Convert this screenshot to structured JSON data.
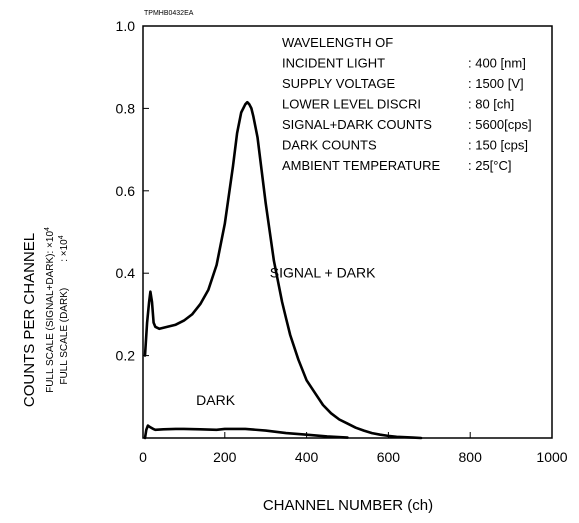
{
  "chart_data": {
    "type": "line",
    "code": "TPMHB0432EA",
    "xlabel": "CHANNEL NUMBER (ch)",
    "ylabel": "COUNTS PER CHANNEL",
    "ylabel_sub1": "FULL SCALE (SIGNAL+DARK): ×10",
    "ylabel_sub1_exp": "4",
    "ylabel_sub2": "FULL SCALE (DARK)",
    "ylabel_sub2_val": ": ×10",
    "ylabel_sub2_exp": "4",
    "xlim": [
      0,
      1000
    ],
    "ylim": [
      0,
      1.0
    ],
    "xticks": [
      0,
      200,
      400,
      600,
      800,
      1000
    ],
    "yticks": [
      0.2,
      0.4,
      0.6,
      0.8,
      1.0
    ],
    "ytick_labels": [
      "0.2",
      "0.4",
      "0.6",
      "0.8",
      "1.0"
    ],
    "legend_box": [
      {
        "label": "WAVELENGTH OF",
        "value": ""
      },
      {
        "label": "INCIDENT LIGHT",
        "value": ": 400 [nm]"
      },
      {
        "label": "SUPPLY VOLTAGE",
        "value": ": 1500 [V]"
      },
      {
        "label": "LOWER LEVEL DISCRI",
        "value": ": 80 [ch]"
      },
      {
        "label": "SIGNAL+DARK COUNTS",
        "value": ": 5600[cps]"
      },
      {
        "label": "DARK COUNTS",
        "value": ": 150 [cps]"
      },
      {
        "label": "AMBIENT TEMPERATURE",
        "value": ": 25[°C]"
      }
    ],
    "series": [
      {
        "name": "SIGNAL + DARK",
        "x": [
          5,
          10,
          15,
          18,
          22,
          26,
          30,
          40,
          60,
          80,
          100,
          120,
          140,
          160,
          180,
          200,
          210,
          220,
          230,
          240,
          250,
          255,
          260,
          265,
          270,
          280,
          290,
          300,
          310,
          320,
          330,
          340,
          350,
          360,
          380,
          400,
          420,
          440,
          460,
          480,
          500,
          520,
          540,
          560,
          580,
          600,
          620,
          640,
          660,
          680
        ],
        "y": [
          0.2,
          0.28,
          0.33,
          0.355,
          0.33,
          0.28,
          0.27,
          0.265,
          0.27,
          0.275,
          0.285,
          0.3,
          0.325,
          0.36,
          0.42,
          0.52,
          0.59,
          0.66,
          0.74,
          0.79,
          0.81,
          0.815,
          0.81,
          0.8,
          0.78,
          0.73,
          0.65,
          0.57,
          0.5,
          0.43,
          0.38,
          0.33,
          0.29,
          0.25,
          0.19,
          0.14,
          0.11,
          0.08,
          0.06,
          0.045,
          0.035,
          0.025,
          0.018,
          0.012,
          0.008,
          0.005,
          0.003,
          0.002,
          0.001,
          0.0
        ]
      },
      {
        "name": "DARK",
        "x": [
          5,
          8,
          12,
          15,
          20,
          25,
          30,
          50,
          80,
          100,
          140,
          180,
          200,
          250,
          300,
          350,
          400,
          450,
          500
        ],
        "y": [
          0.0,
          0.02,
          0.03,
          0.028,
          0.025,
          0.022,
          0.02,
          0.021,
          0.022,
          0.022,
          0.021,
          0.02,
          0.022,
          0.022,
          0.018,
          0.012,
          0.008,
          0.004,
          0.001
        ]
      }
    ],
    "series_labels": [
      {
        "text": "SIGNAL + DARK",
        "x": 310,
        "y": 0.39
      },
      {
        "text": "DARK",
        "x": 130,
        "y": 0.08
      }
    ]
  }
}
